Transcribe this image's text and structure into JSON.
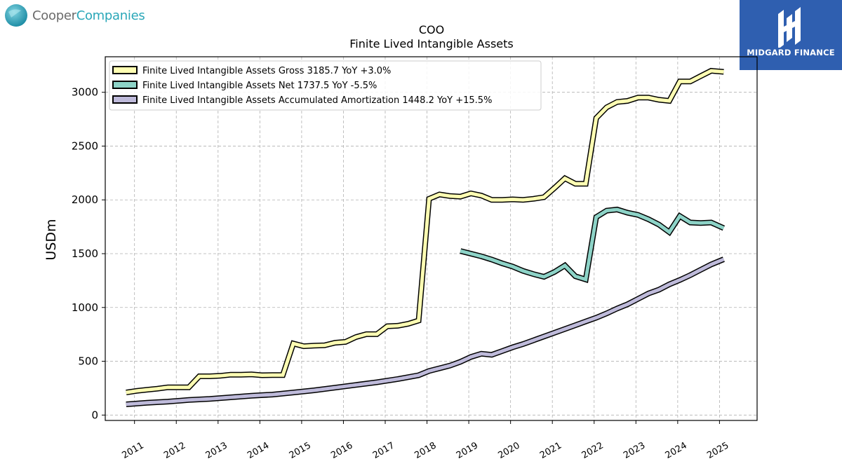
{
  "brand": {
    "name_part1": "Cooper",
    "name_part2": "Companies",
    "logo_text": "MIDGARD FINANCE",
    "logo_icon": "midgard-mark-icon",
    "colors": {
      "grey": "#6b6b6b",
      "teal": "#2aa7b8",
      "logo_bg": "#2f5fb0"
    }
  },
  "chart_data": {
    "type": "line",
    "title": "COO",
    "subtitle": "Finite Lived Intangible Assets",
    "ylabel": "USDm",
    "xlabel": "",
    "ylim": [
      -50,
      3330
    ],
    "xlim": [
      2010.3,
      2025.9
    ],
    "yticks": [
      0,
      500,
      1000,
      1500,
      2000,
      2500,
      3000
    ],
    "xticks": [
      "2011",
      "2012",
      "2013",
      "2014",
      "2015",
      "2016",
      "2017",
      "2018",
      "2019",
      "2020",
      "2021",
      "2022",
      "2023",
      "2024",
      "2025"
    ],
    "grid": true,
    "legend_position": "top-left",
    "series": [
      {
        "name": "Finite Lived Intangible Assets Gross",
        "legend": "Finite Lived Intangible Assets Gross  3185.7 YoY +3.0%",
        "color": "#ffffb3",
        "points": [
          [
            2010.8,
            210
          ],
          [
            2011.05,
            225
          ],
          [
            2011.3,
            235
          ],
          [
            2011.55,
            245
          ],
          [
            2011.8,
            258
          ],
          [
            2012.05,
            258
          ],
          [
            2012.3,
            258
          ],
          [
            2012.55,
            360
          ],
          [
            2012.8,
            360
          ],
          [
            2013.05,
            365
          ],
          [
            2013.3,
            375
          ],
          [
            2013.55,
            375
          ],
          [
            2013.8,
            378
          ],
          [
            2014.05,
            370
          ],
          [
            2014.3,
            372
          ],
          [
            2014.55,
            372
          ],
          [
            2014.8,
            665
          ],
          [
            2015.05,
            640
          ],
          [
            2015.3,
            645
          ],
          [
            2015.55,
            648
          ],
          [
            2015.8,
            672
          ],
          [
            2016.05,
            680
          ],
          [
            2016.3,
            725
          ],
          [
            2016.55,
            752
          ],
          [
            2016.8,
            752
          ],
          [
            2017.05,
            825
          ],
          [
            2017.3,
            830
          ],
          [
            2017.55,
            848
          ],
          [
            2017.8,
            878
          ],
          [
            2018.05,
            2010
          ],
          [
            2018.3,
            2050
          ],
          [
            2018.55,
            2035
          ],
          [
            2018.8,
            2030
          ],
          [
            2019.05,
            2060
          ],
          [
            2019.3,
            2040
          ],
          [
            2019.55,
            2000
          ],
          [
            2019.8,
            2000
          ],
          [
            2020.05,
            2005
          ],
          [
            2020.3,
            2000
          ],
          [
            2020.55,
            2010
          ],
          [
            2020.8,
            2025
          ],
          [
            2021.05,
            2110
          ],
          [
            2021.3,
            2200
          ],
          [
            2021.55,
            2150
          ],
          [
            2021.8,
            2150
          ],
          [
            2022.05,
            2760
          ],
          [
            2022.3,
            2860
          ],
          [
            2022.55,
            2910
          ],
          [
            2022.8,
            2920
          ],
          [
            2023.05,
            2950
          ],
          [
            2023.3,
            2950
          ],
          [
            2023.55,
            2930
          ],
          [
            2023.8,
            2920
          ],
          [
            2024.05,
            3100
          ],
          [
            2024.3,
            3100
          ],
          [
            2024.55,
            3150
          ],
          [
            2024.8,
            3200
          ],
          [
            2025.1,
            3190
          ]
        ]
      },
      {
        "name": "Finite Lived Intangible Assets Net",
        "legend": "Finite Lived Intangible Assets Net  1737.5 YoY -5.5%",
        "color": "#8dd3c7",
        "points": [
          [
            2018.8,
            1525
          ],
          [
            2019.05,
            1500
          ],
          [
            2019.3,
            1475
          ],
          [
            2019.55,
            1445
          ],
          [
            2019.8,
            1410
          ],
          [
            2020.05,
            1380
          ],
          [
            2020.3,
            1340
          ],
          [
            2020.55,
            1310
          ],
          [
            2020.8,
            1285
          ],
          [
            2021.05,
            1330
          ],
          [
            2021.3,
            1390
          ],
          [
            2021.55,
            1290
          ],
          [
            2021.8,
            1260
          ],
          [
            2022.05,
            1840
          ],
          [
            2022.3,
            1900
          ],
          [
            2022.55,
            1910
          ],
          [
            2022.8,
            1880
          ],
          [
            2023.05,
            1860
          ],
          [
            2023.3,
            1820
          ],
          [
            2023.55,
            1770
          ],
          [
            2023.8,
            1700
          ],
          [
            2024.05,
            1850
          ],
          [
            2024.3,
            1790
          ],
          [
            2024.55,
            1785
          ],
          [
            2024.8,
            1790
          ],
          [
            2025.1,
            1737.5
          ]
        ]
      },
      {
        "name": "Finite Lived Intangible Assets Accumulated Amortization",
        "legend": "Finite Lived Intangible Assets Accumulated Amortization  1448.2 YoY +15.5%",
        "color": "#bebada",
        "points": [
          [
            2010.8,
            100
          ],
          [
            2011.3,
            115
          ],
          [
            2011.8,
            125
          ],
          [
            2012.3,
            140
          ],
          [
            2012.8,
            150
          ],
          [
            2013.3,
            165
          ],
          [
            2013.8,
            180
          ],
          [
            2014.3,
            190
          ],
          [
            2014.8,
            210
          ],
          [
            2015.3,
            230
          ],
          [
            2015.8,
            255
          ],
          [
            2016.3,
            280
          ],
          [
            2016.8,
            305
          ],
          [
            2017.3,
            335
          ],
          [
            2017.8,
            370
          ],
          [
            2018.05,
            410
          ],
          [
            2018.55,
            460
          ],
          [
            2018.8,
            495
          ],
          [
            2019.05,
            540
          ],
          [
            2019.3,
            570
          ],
          [
            2019.55,
            560
          ],
          [
            2019.8,
            595
          ],
          [
            2020.05,
            630
          ],
          [
            2020.3,
            660
          ],
          [
            2020.55,
            695
          ],
          [
            2020.8,
            730
          ],
          [
            2021.05,
            765
          ],
          [
            2021.3,
            800
          ],
          [
            2021.55,
            835
          ],
          [
            2021.8,
            870
          ],
          [
            2022.05,
            905
          ],
          [
            2022.3,
            945
          ],
          [
            2022.55,
            990
          ],
          [
            2022.8,
            1030
          ],
          [
            2023.05,
            1080
          ],
          [
            2023.3,
            1130
          ],
          [
            2023.55,
            1165
          ],
          [
            2023.8,
            1215
          ],
          [
            2024.05,
            1255
          ],
          [
            2024.3,
            1300
          ],
          [
            2024.55,
            1350
          ],
          [
            2024.8,
            1400
          ],
          [
            2025.1,
            1448.2
          ]
        ]
      }
    ]
  }
}
